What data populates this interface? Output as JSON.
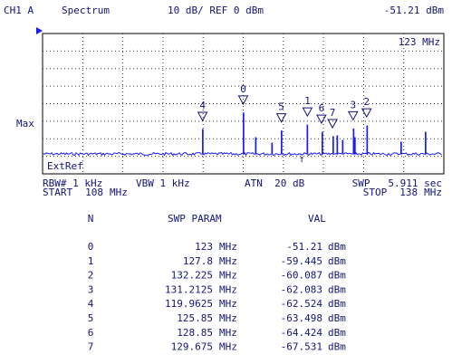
{
  "header": {
    "channel": "CH1 A",
    "mode": "Spectrum",
    "scale": "10 dB/ REF 0 dBm",
    "marker_value": "-51.21 dBm"
  },
  "plot": {
    "marker_freq": "123 MHz",
    "y_label": "Max",
    "ref_label": "ExtRef"
  },
  "footer": {
    "rbw": "RBW# 1 kHz",
    "vbw": "VBW 1 kHz",
    "atn": "ATN  20 dB",
    "swp": "SWP   5.911 sec",
    "start": {
      "label": "START",
      "value": 108,
      "unit": "MHz"
    },
    "stop": {
      "label": "STOP",
      "value": 138,
      "unit": "MHz"
    }
  },
  "table": {
    "headers": [
      "N",
      "SWP PARAM",
      "VAL"
    ],
    "freq_unit": "MHz",
    "val_unit": "dBm",
    "rows": [
      [
        0,
        123,
        -51.21
      ],
      [
        1,
        127.8,
        -59.445
      ],
      [
        2,
        132.225,
        -60.087
      ],
      [
        3,
        131.2125,
        -62.083
      ],
      [
        4,
        119.9625,
        -62.524
      ],
      [
        5,
        125.85,
        -63.498
      ],
      [
        6,
        128.85,
        -64.424
      ],
      [
        7,
        129.675,
        -67.531
      ]
    ]
  }
}
